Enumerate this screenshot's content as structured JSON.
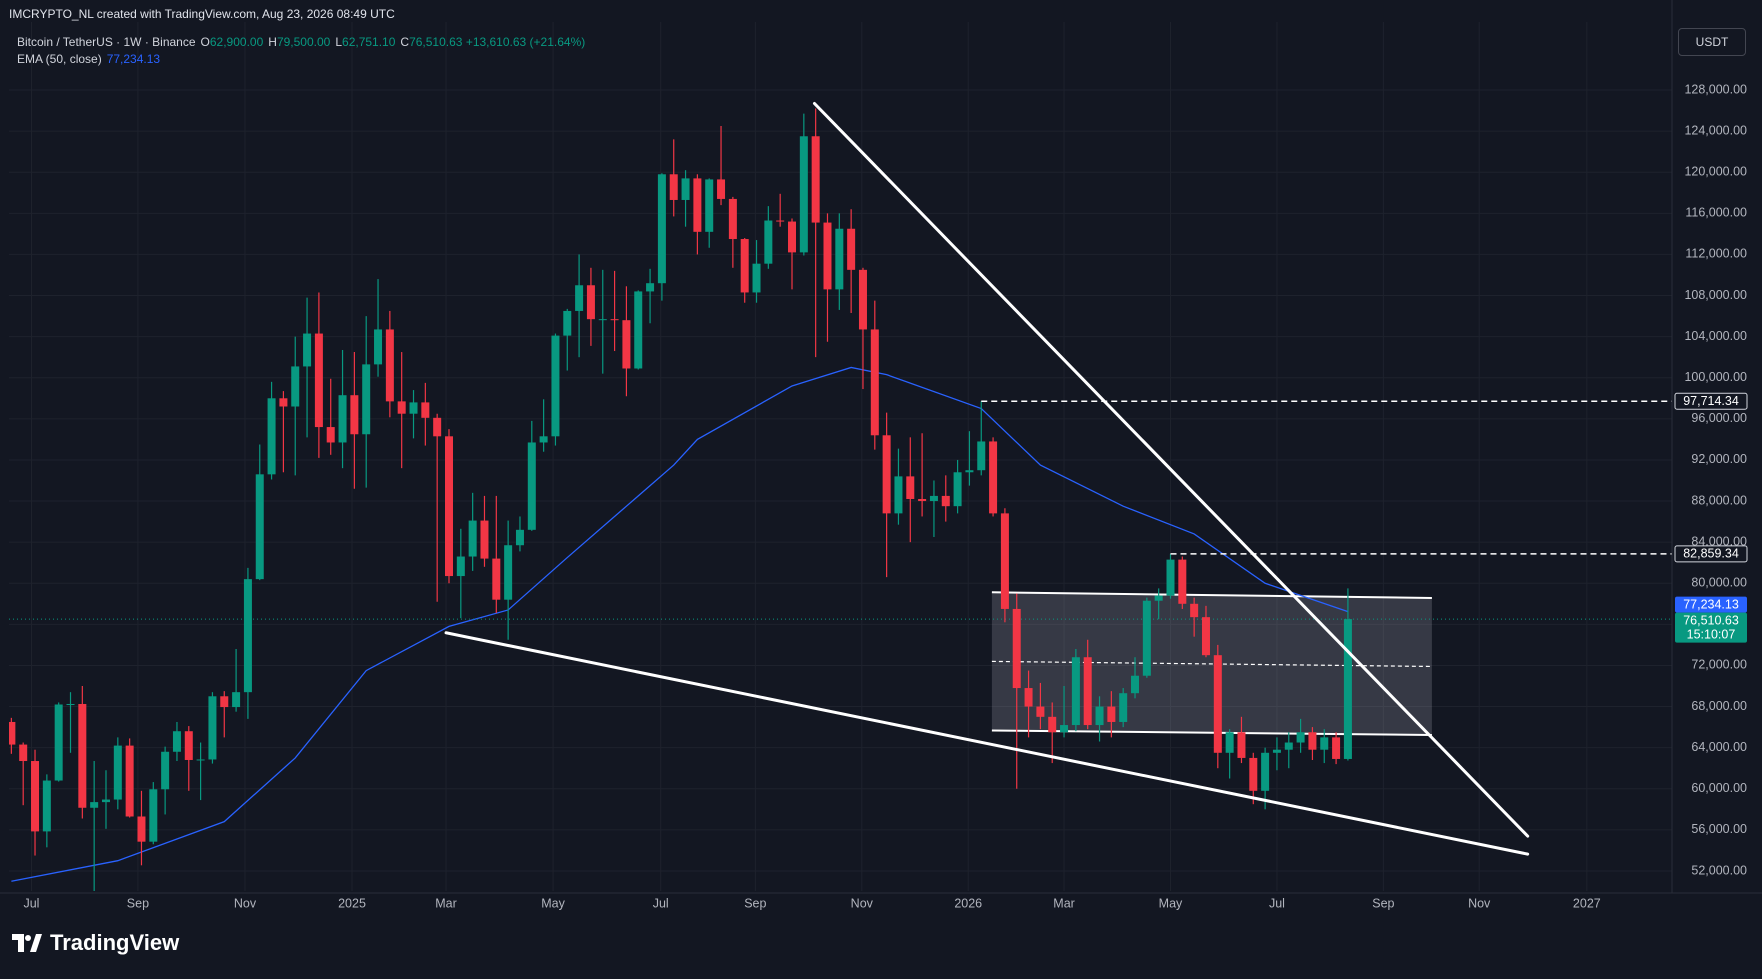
{
  "header": {
    "text": "IMCRYPTO_NL created with TradingView.com, Aug 23, 2026 08:49 UTC"
  },
  "legend": {
    "symbol": "Bitcoin / TetherUS · 1W · Binance",
    "items": [
      {
        "key": "O",
        "value": "62,900.00"
      },
      {
        "key": "H",
        "value": "79,500.00"
      },
      {
        "key": "L",
        "value": "62,751.10"
      },
      {
        "key": "C",
        "value": "76,510.63"
      }
    ],
    "change": "+13,610.63 (+21.64%)",
    "ema_name": "EMA (50, close)",
    "ema_value": "77,234.13"
  },
  "currency": "USDT",
  "logo": "TradingView",
  "chart_data": {
    "type": "candlestick",
    "up_color": "#089981",
    "down_color": "#f23645",
    "open": [
      66500,
      64300,
      62700,
      55850,
      60800,
      68200,
      68250,
      58150,
      58700,
      58950,
      64200,
      57300,
      54850,
      59950,
      63600,
      65600,
      62800,
      62850,
      69000,
      67950,
      69400,
      80400,
      90600,
      98000,
      97200,
      101100,
      104300,
      95200,
      93700,
      98300,
      94500,
      101300,
      104700,
      97700,
      96500,
      97600,
      96100,
      94300,
      80700,
      82600,
      86100,
      82400,
      78400,
      83700,
      85200,
      93700,
      94300,
      104100,
      106500,
      109000,
      105700,
      105700,
      105600,
      100900,
      108400,
      109200,
      119800,
      117300,
      119400,
      114200,
      119300,
      117400,
      113500,
      108300,
      111100,
      115300,
      115200,
      112200,
      123500,
      115100,
      108600,
      114500,
      110500,
      104700,
      94400,
      86800,
      90400,
      88200,
      88000,
      88500,
      87500,
      90800,
      91000,
      93800,
      86800,
      77500,
      69800,
      68000,
      67000,
      65500,
      66200,
      72800,
      66200,
      68000,
      66500,
      69300,
      71000,
      78300,
      78800,
      82300,
      78000,
      76700,
      73000,
      63500,
      65500,
      63000,
      59800,
      63500,
      63800,
      64500,
      65500,
      63800,
      65000,
      62900
    ],
    "high": [
      66900,
      64500,
      63800,
      61400,
      68400,
      69400,
      70000,
      62700,
      61800,
      65000,
      64900,
      59800,
      60650,
      64100,
      66500,
      66100,
      64500,
      69400,
      69500,
      73600,
      81500,
      93500,
      99600,
      98700,
      104000,
      107800,
      108300,
      99900,
      102700,
      102500,
      106000,
      109600,
      106500,
      102500,
      98800,
      99500,
      96500,
      95000,
      85300,
      88800,
      88500,
      88500,
      86100,
      86500,
      95800,
      97900,
      104300,
      106700,
      112000,
      110700,
      110500,
      110400,
      108900,
      108500,
      110600,
      119900,
      123200,
      120200,
      119800,
      119400,
      124500,
      117600,
      113600,
      113400,
      116700,
      117900,
      115500,
      125700,
      126200,
      116000,
      116000,
      116400,
      110700,
      107500,
      96600,
      93100,
      94200,
      94600,
      90000,
      90500,
      92000,
      94800,
      97714.34,
      94200,
      87300,
      79000,
      71500,
      70300,
      68400,
      70000,
      73600,
      74500,
      69000,
      69500,
      69800,
      72800,
      78600,
      79500,
      82859.34,
      82600,
      78600,
      77800,
      74000,
      65800,
      67000,
      63500,
      64000,
      65000,
      65500,
      66800,
      66000,
      65800,
      65500,
      79500
    ],
    "low": [
      63400,
      58400,
      53500,
      54300,
      60700,
      63500,
      57100,
      49000,
      56100,
      58000,
      57200,
      52550,
      54600,
      57500,
      62700,
      59800,
      58900,
      62450,
      65000,
      67500,
      66800,
      80300,
      90100,
      90800,
      90500,
      94200,
      92200,
      92500,
      91200,
      89200,
      89300,
      100100,
      96150,
      91200,
      94100,
      93400,
      78200,
      80000,
      76600,
      81200,
      81600,
      77100,
      74500,
      83100,
      85100,
      92800,
      93400,
      100700,
      102000,
      103100,
      100400,
      102600,
      98200,
      100800,
      105300,
      107500,
      115700,
      114700,
      112000,
      112650,
      116800,
      110700,
      107300,
      107300,
      110600,
      114700,
      108600,
      111900,
      102000,
      103500,
      106600,
      106300,
      98900,
      93000,
      80600,
      85700,
      84000,
      86500,
      84500,
      86000,
      86800,
      89500,
      90500,
      86500,
      76200,
      60000,
      65000,
      65800,
      62500,
      65000,
      65600,
      65800,
      64600,
      65000,
      66000,
      68800,
      70800,
      76500,
      78500,
      77500,
      74800,
      72800,
      62000,
      61000,
      62500,
      58500,
      58000,
      61800,
      62000,
      63500,
      62800,
      62500,
      62400,
      62751.1
    ],
    "close": [
      64300,
      62700,
      55850,
      60800,
      68200,
      68250,
      58150,
      58700,
      58950,
      64200,
      57300,
      54850,
      59950,
      63600,
      65600,
      62800,
      62850,
      69000,
      67950,
      69400,
      80400,
      90600,
      98000,
      97200,
      101100,
      104300,
      95200,
      93700,
      98300,
      94500,
      101300,
      104700,
      97700,
      96500,
      97600,
      96100,
      94300,
      80700,
      82600,
      86100,
      82400,
      78400,
      83700,
      85200,
      93700,
      94300,
      104100,
      106500,
      109000,
      105700,
      105700,
      105600,
      100900,
      108400,
      109200,
      119800,
      117300,
      119400,
      114200,
      119300,
      117400,
      113500,
      108300,
      111100,
      115300,
      115200,
      112200,
      123500,
      115100,
      108600,
      114500,
      110500,
      104700,
      94400,
      86800,
      90400,
      88200,
      88000,
      88500,
      87500,
      90800,
      91000,
      93800,
      86800,
      77500,
      69800,
      68000,
      67000,
      65500,
      66200,
      72800,
      66200,
      68000,
      66500,
      69300,
      71000,
      78300,
      78800,
      82300,
      78000,
      76700,
      73000,
      63500,
      65500,
      63000,
      59800,
      63500,
      63800,
      64500,
      65500,
      63800,
      65000,
      62900,
      76510.63
    ],
    "ema": {
      "color": "#2962ff",
      "x": [
        0,
        9,
        18,
        24,
        30,
        37,
        42,
        47,
        52,
        56,
        58,
        66,
        71,
        74,
        82,
        87,
        94,
        100,
        106,
        113
      ],
      "values": [
        51000,
        53000,
        56800,
        63000,
        71500,
        75800,
        77400,
        82500,
        87500,
        91500,
        94000,
        99200,
        101000,
        100300,
        97000,
        91500,
        87500,
        84800,
        80000,
        77234.13
      ]
    },
    "xlim": [
      -0.2,
      140.4
    ],
    "xticks": [
      {
        "value": 1.7,
        "label": "Jul"
      },
      {
        "value": 10.7,
        "label": "Sep"
      },
      {
        "value": 19.75,
        "label": "Nov"
      },
      {
        "value": 28.8,
        "label": "2025"
      },
      {
        "value": 36.75,
        "label": "Mar"
      },
      {
        "value": 45.8,
        "label": "May"
      },
      {
        "value": 54.9,
        "label": "Jul"
      },
      {
        "value": 62.9,
        "label": "Sep"
      },
      {
        "value": 71.9,
        "label": "Nov"
      },
      {
        "value": 80.9,
        "label": "2026"
      },
      {
        "value": 89.0,
        "label": "Mar"
      },
      {
        "value": 98.0,
        "label": "May"
      },
      {
        "value": 107.0,
        "label": "Jul"
      },
      {
        "value": 116.0,
        "label": "Sep"
      },
      {
        "value": 124.1,
        "label": "Nov"
      },
      {
        "value": 133.2,
        "label": "2027"
      }
    ],
    "ylim": [
      50050,
      134620
    ],
    "yticks": [
      {
        "value": 52000,
        "label": "52,000.00"
      },
      {
        "value": 56000,
        "label": "56,000.00"
      },
      {
        "value": 60000,
        "label": "60,000.00"
      },
      {
        "value": 64000,
        "label": "64,000.00"
      },
      {
        "value": 68000,
        "label": "68,000.00"
      },
      {
        "value": 72000,
        "label": "72,000.00"
      },
      {
        "value": 76000,
        "label": "76,000.00"
      },
      {
        "value": 80000,
        "label": "80,000.00"
      },
      {
        "value": 84000,
        "label": "84,000.00"
      },
      {
        "value": 88000,
        "label": "88,000.00"
      },
      {
        "value": 92000,
        "label": "92,000.00"
      },
      {
        "value": 96000,
        "label": "96,000.00"
      },
      {
        "value": 100000,
        "label": "100,000.00"
      },
      {
        "value": 104000,
        "label": "104,000.00"
      },
      {
        "value": 108000,
        "label": "108,000.00"
      },
      {
        "value": 112000,
        "label": "112,000.00"
      },
      {
        "value": 116000,
        "label": "116,000.00"
      },
      {
        "value": 120000,
        "label": "120,000.00"
      },
      {
        "value": 124000,
        "label": "124,000.00"
      },
      {
        "value": 128000,
        "label": "128,000.00"
      }
    ],
    "grid": true,
    "hlines": [
      {
        "from": 82.0,
        "value": 97714.34,
        "label": "97,714.34"
      },
      {
        "from": 98.0,
        "value": 82859.34,
        "label": "82,859.34"
      }
    ],
    "trendlines": [
      {
        "color": "#ffffff",
        "points": [
          [
            67.9,
            126690
          ],
          [
            128.2,
            55390
          ]
        ]
      },
      {
        "color": "#ffffff",
        "points": [
          [
            36.75,
            75180
          ],
          [
            128.2,
            53640
          ]
        ]
      }
    ],
    "channel": {
      "color": "#ffffff",
      "top": [
        [
          82.9,
          79120
        ],
        [
          120.1,
          78570
        ]
      ],
      "bottom": [
        [
          82.9,
          65670
        ],
        [
          120.1,
          65230
        ]
      ]
    },
    "price_tags": [
      {
        "value": 77234.13,
        "label": "77,234.13",
        "color": "#2962ff"
      },
      {
        "value": 76510.63,
        "label": "76,510.63",
        "color": "#089981"
      }
    ],
    "countdown": "15:10:07"
  }
}
